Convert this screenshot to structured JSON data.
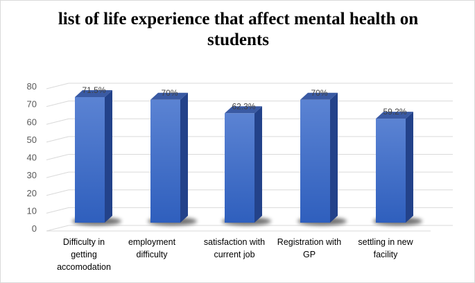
{
  "chart_data": {
    "type": "bar",
    "style": "3d-column",
    "title": "list of life experience  that affect mental health on students",
    "title_lines": [
      "list of life experience  that affect mental health on",
      "students"
    ],
    "categories": [
      [
        "Difficulty in",
        "getting",
        "accomodation"
      ],
      [
        "employment",
        "difficulty"
      ],
      [
        "satisfaction with",
        "current job"
      ],
      [
        "Registration with",
        "GP"
      ],
      [
        "settling in new",
        "facility"
      ]
    ],
    "values": [
      71.5,
      70,
      62.3,
      70,
      59.2
    ],
    "data_labels": [
      "71.5%",
      "70%",
      "62.3%",
      "70%",
      "59.2%"
    ],
    "yticks": [
      0,
      10,
      20,
      30,
      40,
      50,
      60,
      70,
      80
    ],
    "ylim": [
      0,
      80
    ],
    "grid": true,
    "legend": "none",
    "colors": {
      "bar_front_top": "#5b83d3",
      "bar_front_bottom": "#2f5fbd",
      "bar_side": "#23428a",
      "bar_top": "#3a5aa3",
      "grid": "#d9d9d9"
    }
  }
}
